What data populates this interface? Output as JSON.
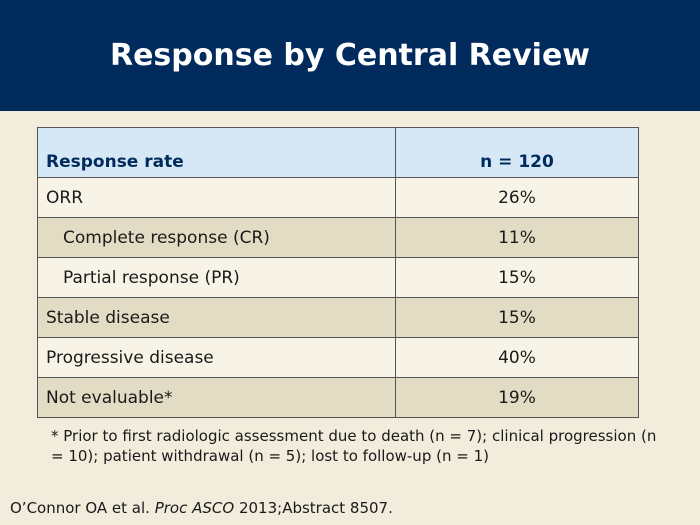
{
  "slide": {
    "title": "Response by Central Review"
  },
  "table": {
    "headers": [
      "Response rate",
      "n = 120"
    ],
    "rows": [
      {
        "label": "ORR",
        "value": "26%"
      },
      {
        "label": "Complete response (CR)",
        "value": "11%"
      },
      {
        "label": "Partial response (PR)",
        "value": "15%"
      },
      {
        "label": "Stable disease",
        "value": "15%"
      },
      {
        "label": "Progressive disease",
        "value": "40%"
      },
      {
        "label": "Not evaluable*",
        "value": "19%"
      }
    ]
  },
  "footnote": "* Prior to first radiologic assessment due to death (n = 7); clinical progression (n = 10); patient withdrawal (n = 5); lost to follow-up (n = 1)",
  "citation": {
    "author": "O’Connor OA et al.",
    "journal": "Proc ASCO",
    "details": "2013;Abstract 8507."
  },
  "colors": {
    "header_bg": "#002b5c",
    "table_header_bg": "#d6e8f5",
    "row_light": "#f7f3e6",
    "row_dark": "#e3dcc4",
    "page_bg": "#f2ecdc"
  }
}
